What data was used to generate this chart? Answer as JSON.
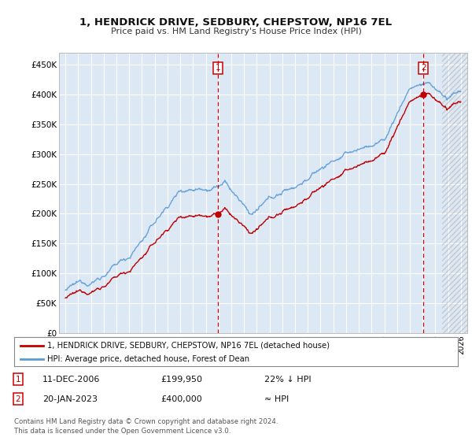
{
  "title": "1, HENDRICK DRIVE, SEDBURY, CHEPSTOW, NP16 7EL",
  "subtitle": "Price paid vs. HM Land Registry's House Price Index (HPI)",
  "ylim": [
    0,
    470000
  ],
  "yticks": [
    0,
    50000,
    100000,
    150000,
    200000,
    250000,
    300000,
    350000,
    400000,
    450000
  ],
  "ytick_labels": [
    "£0",
    "£50K",
    "£100K",
    "£150K",
    "£200K",
    "£250K",
    "£300K",
    "£350K",
    "£400K",
    "£450K"
  ],
  "hpi_color": "#5b9bd5",
  "price_color": "#c00000",
  "vline_color": "#cc0000",
  "purchase1": {
    "date_idx": 2006.95,
    "price": 199950,
    "label": "1",
    "note": "11-DEC-2006",
    "price_str": "£199,950",
    "pct": "22% ↓ HPI"
  },
  "purchase2": {
    "date_idx": 2023.06,
    "price": 400000,
    "label": "2",
    "note": "20-JAN-2023",
    "price_str": "£400,000",
    "pct": "≈ HPI"
  },
  "legend_line1": "1, HENDRICK DRIVE, SEDBURY, CHEPSTOW, NP16 7EL (detached house)",
  "legend_line2": "HPI: Average price, detached house, Forest of Dean",
  "footer": "Contains HM Land Registry data © Crown copyright and database right 2024.\nThis data is licensed under the Open Government Licence v3.0.",
  "bg_color": "#ffffff",
  "plot_bg_color": "#dde8f5",
  "grid_color": "#ffffff",
  "xmin": 1994.5,
  "xmax": 2026.5,
  "hatch_start": 2024.5
}
